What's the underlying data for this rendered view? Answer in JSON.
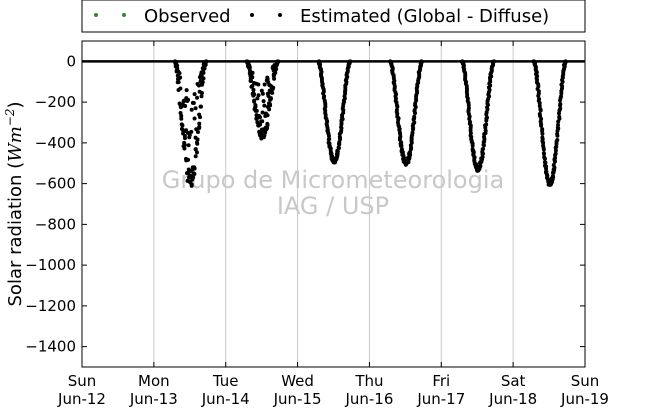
{
  "legend": {
    "observed_label": "Observed",
    "estimated_label": "Estimated (Global - Diffuse)",
    "observed_color": "#2e8b2e",
    "estimated_color": "#000000"
  },
  "watermark": {
    "line1": "Grupo de Micrometeorologia",
    "line2": "IAG / USP"
  },
  "chart_data": {
    "type": "scatter",
    "title": "",
    "ylabel_prefix": "Solar radiation (",
    "ylabel_math": "Wm",
    "ylabel_exp": "−2",
    "ylabel_suffix": ")",
    "xlabel": "",
    "ylim": [
      -1500,
      100
    ],
    "yticks": [
      0,
      -200,
      -400,
      -600,
      -800,
      -1000,
      -1200,
      -1400
    ],
    "xlim": [
      "2011-06-12",
      "2011-06-19"
    ],
    "xticks": [
      {
        "day": "Sun",
        "date": "Jun-12"
      },
      {
        "day": "Mon",
        "date": "Jun-13"
      },
      {
        "day": "Tue",
        "date": "Jun-14"
      },
      {
        "day": "Wed",
        "date": "Jun-15"
      },
      {
        "day": "Thu",
        "date": "Jun-16"
      },
      {
        "day": "Fri",
        "date": "Jun-17"
      },
      {
        "day": "Sat",
        "date": "Jun-18"
      },
      {
        "day": "Sun",
        "date": "Jun-19"
      }
    ],
    "grid": {
      "vertical": true,
      "horizontal": false
    },
    "legend_position": "top",
    "series": [
      {
        "name": "Estimated (Global - Diffuse)",
        "color": "#000000",
        "days": [
          {
            "date": "2011-06-13",
            "sunrise": "2011-06-13T07:00",
            "sunset": "2011-06-13T17:30",
            "peak": -630,
            "cloudy": true
          },
          {
            "date": "2011-06-14",
            "sunrise": "2011-06-14T07:00",
            "sunset": "2011-06-14T17:30",
            "peak": -390,
            "cloudy": true
          },
          {
            "date": "2011-06-15",
            "sunrise": "2011-06-15T07:00",
            "sunset": "2011-06-15T17:30",
            "peak": -500,
            "cloudy": false
          },
          {
            "date": "2011-06-16",
            "sunrise": "2011-06-16T07:00",
            "sunset": "2011-06-16T17:30",
            "peak": -510,
            "cloudy": false
          },
          {
            "date": "2011-06-17",
            "sunrise": "2011-06-17T07:00",
            "sunset": "2011-06-17T17:30",
            "peak": -540,
            "cloudy": false
          },
          {
            "date": "2011-06-18",
            "sunrise": "2011-06-18T07:00",
            "sunset": "2011-06-18T17:30",
            "peak": -610,
            "cloudy": false
          }
        ]
      },
      {
        "name": "Observed",
        "color": "#2e8b2e",
        "days": []
      }
    ]
  }
}
